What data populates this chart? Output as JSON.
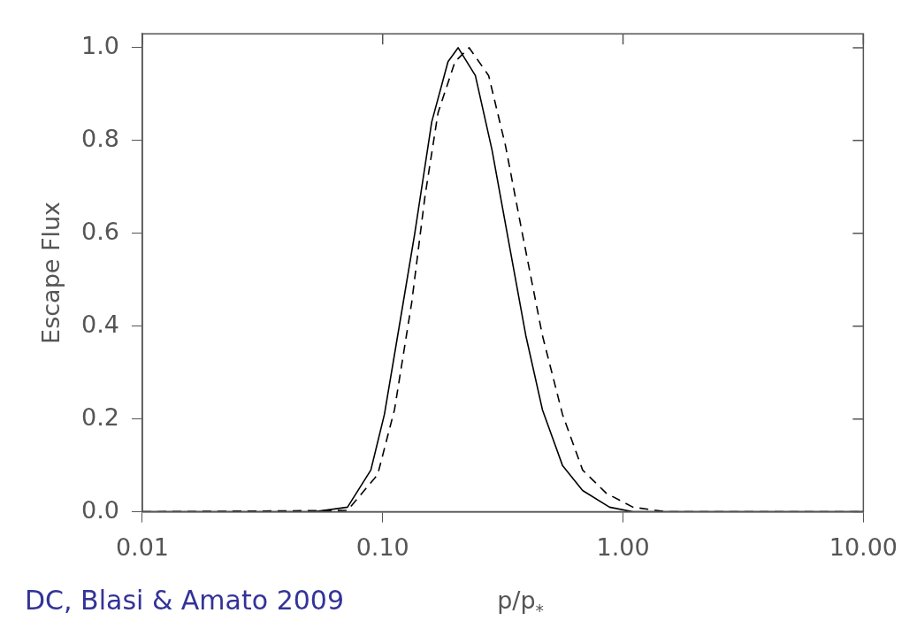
{
  "chart_data": {
    "type": "line",
    "xlabel": "p/p$_{*}$",
    "ylabel": "Escape Flux",
    "log": "x",
    "annotations": [
      "DC, Blasi & Amato 2009"
    ],
    "xlim": [
      0.01,
      10
    ],
    "ylim": [
      0,
      1.03
    ],
    "xticks": [
      {
        "value": 0.01,
        "label": "0.01"
      },
      {
        "value": 0.1,
        "label": "0.10"
      },
      {
        "value": 1,
        "label": "1.00"
      },
      {
        "value": 10,
        "label": "10.00"
      }
    ],
    "yticks": [
      {
        "value": 0,
        "label": "0.0"
      },
      {
        "value": 0.2,
        "label": "0.2"
      },
      {
        "value": 0.4,
        "label": "0.4"
      },
      {
        "value": 0.6,
        "label": "0.6"
      },
      {
        "value": 0.8,
        "label": "0.8"
      },
      {
        "value": 1,
        "label": "1.0"
      }
    ],
    "grid": false,
    "marker": "none",
    "series": [
      {
        "color": "#000000",
        "line_style": "solid",
        "x": [
          0.01,
          0.0517,
          0.0714,
          0.0893,
          0.1017,
          0.119,
          0.136,
          0.16,
          0.187,
          0.206,
          0.243,
          0.285,
          0.335,
          0.394,
          0.462,
          0.56,
          0.679,
          0.879,
          1.1,
          10
        ],
        "values": [
          0,
          0,
          0.01,
          0.09,
          0.21,
          0.42,
          0.6,
          0.84,
          0.97,
          1,
          0.94,
          0.78,
          0.58,
          0.38,
          0.22,
          0.1,
          0.046,
          0.01,
          0,
          0
        ]
      },
      {
        "color": "#000000",
        "line_style": "dashed",
        "x": [
          0.01,
          0.0714,
          0.0953,
          0.112,
          0.132,
          0.15,
          0.17,
          0.2,
          0.229,
          0.276,
          0.324,
          0.381,
          0.462,
          0.56,
          0.679,
          0.852,
          1.1,
          1.52,
          10
        ],
        "values": [
          0,
          0.003,
          0.08,
          0.22,
          0.45,
          0.68,
          0.86,
          0.97,
          1,
          0.94,
          0.79,
          0.6,
          0.38,
          0.21,
          0.09,
          0.04,
          0.01,
          0,
          0
        ]
      }
    ]
  }
}
